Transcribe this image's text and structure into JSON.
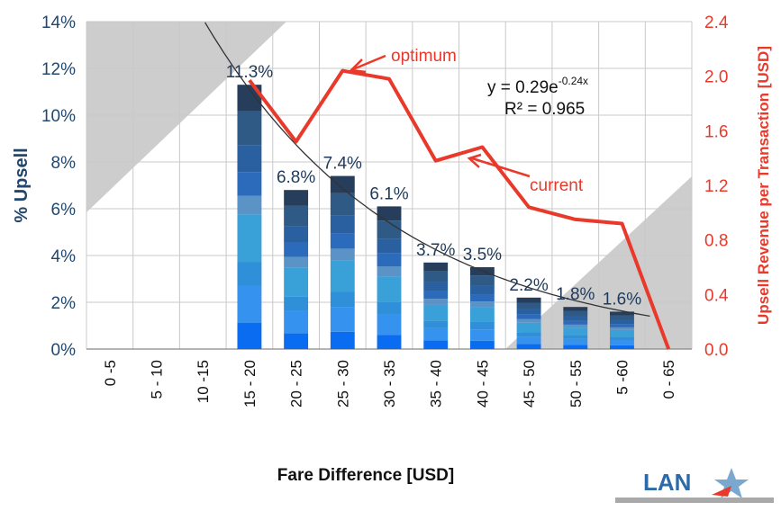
{
  "chart_data": {
    "type": "bar",
    "xlabel": "Fare Difference [USD]",
    "ylabel": "% Upsell",
    "y2label": "Upsell Revenue per Transaction [USD]",
    "categories": [
      "0 -5",
      "5 - 10",
      "10 -15",
      "15 - 20",
      "20 - 25",
      "25 - 30",
      "30 - 35",
      "35 - 40",
      "40 - 45",
      "45 - 50",
      "50 - 55",
      "5 -60",
      "0 - 65"
    ],
    "bar_values": [
      0,
      0,
      0,
      11.3,
      6.8,
      7.4,
      6.1,
      3.7,
      3.5,
      2.2,
      1.8,
      1.6,
      0
    ],
    "bar_labels": [
      "",
      "",
      "",
      "11.3%",
      "6.8%",
      "7.4%",
      "6.1%",
      "3.7%",
      "3.5%",
      "2.2%",
      "1.8%",
      "1.6%",
      ""
    ],
    "line_values": [
      null,
      null,
      null,
      1.97,
      1.52,
      2.04,
      1.98,
      1.38,
      1.48,
      1.04,
      0.95,
      0.92,
      0.0
    ],
    "ylim": [
      0,
      14
    ],
    "y_ticks": [
      "0%",
      "2%",
      "4%",
      "6%",
      "8%",
      "10%",
      "12%",
      "14%"
    ],
    "y2lim": [
      0,
      2.4
    ],
    "y2_ticks": [
      "0.0",
      "0.4",
      "0.8",
      "1.2",
      "1.6",
      "2.0",
      "2.4"
    ],
    "trendline": {
      "equation_base": "y = 0.29e",
      "equation_exp": "-0.24x",
      "r2": "R² = 0.965"
    },
    "annotations": {
      "optimum": "optimum",
      "current": "current"
    },
    "grid": true
  },
  "logo": {
    "text": "LAN"
  },
  "colors": {
    "line": "#e8392b",
    "left_axis": "#22476e",
    "right_axis": "#e8392b",
    "shade": "#cdcdcd",
    "trend": "#333333",
    "segments": [
      "#0a6cf0",
      "#3592ee",
      "#2f8fd8",
      "#3aa0d8",
      "#5b93c6",
      "#2c6bbb",
      "#2a5fa0",
      "#2e5a85",
      "#263d5c"
    ]
  }
}
